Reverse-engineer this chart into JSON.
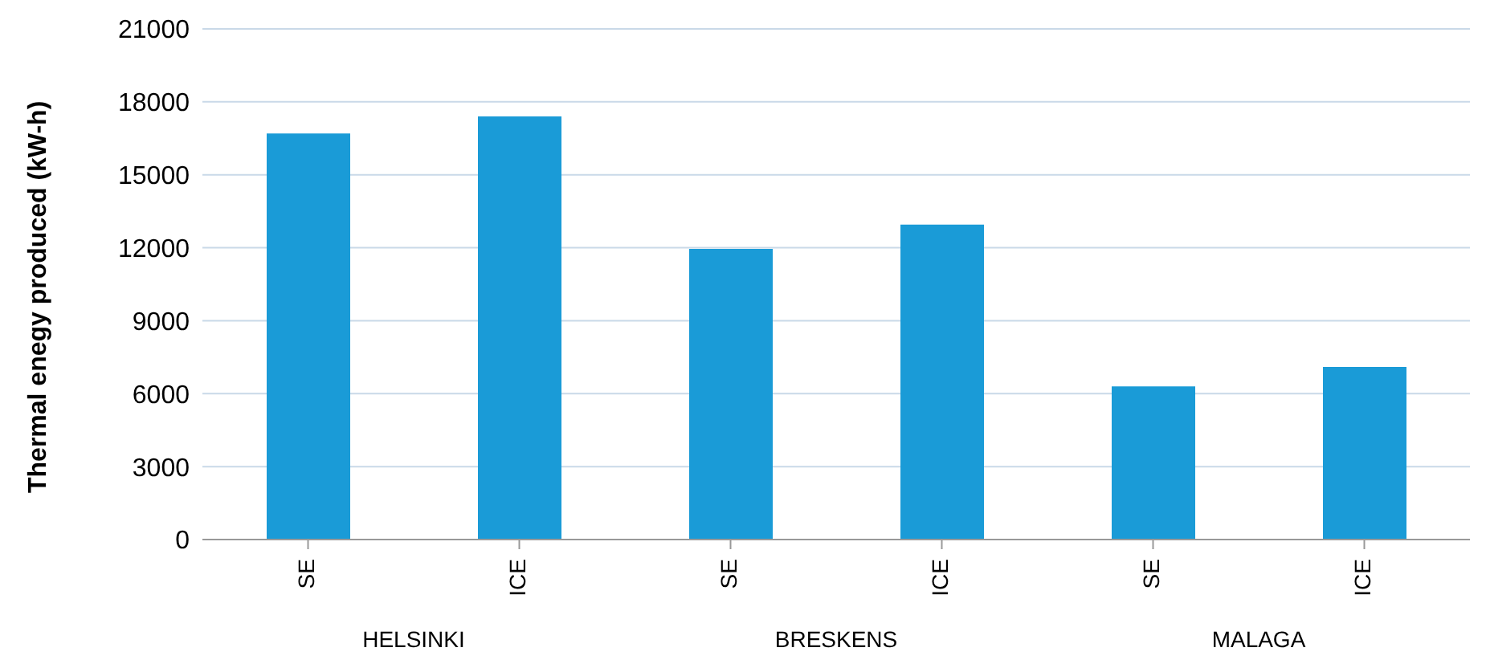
{
  "chart_data": {
    "type": "bar",
    "ylabel": "Thermal enegy produced (kW-h)",
    "categories": [
      "SE",
      "ICE",
      "SE",
      "ICE",
      "SE",
      "ICE"
    ],
    "values": [
      16700,
      17400,
      11950,
      12950,
      6300,
      7100
    ],
    "color": "#1a9bd7",
    "annotations": [
      "HELSINKI",
      "BRESKENS",
      "MALAGA"
    ],
    "ylim": [
      0,
      21000
    ],
    "yticks": [
      0,
      3000,
      6000,
      9000,
      12000,
      15000,
      18000,
      21000
    ],
    "grid": "y",
    "legend": false
  }
}
